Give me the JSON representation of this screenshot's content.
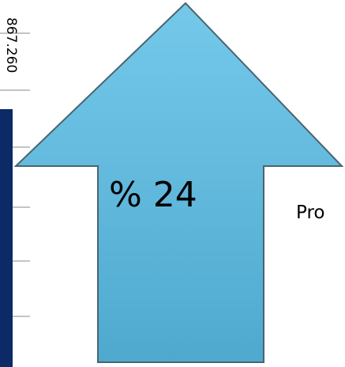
{
  "chart_data": {
    "type": "bar",
    "series": [
      {
        "values": [
          867.26
        ]
      }
    ],
    "data_labels": [
      "867.260"
    ],
    "grid": true,
    "bar_color": "#0c2a66"
  },
  "callout": {
    "text": "% 24",
    "arrow_color": "#63bfe1"
  },
  "side_label": "Pro"
}
